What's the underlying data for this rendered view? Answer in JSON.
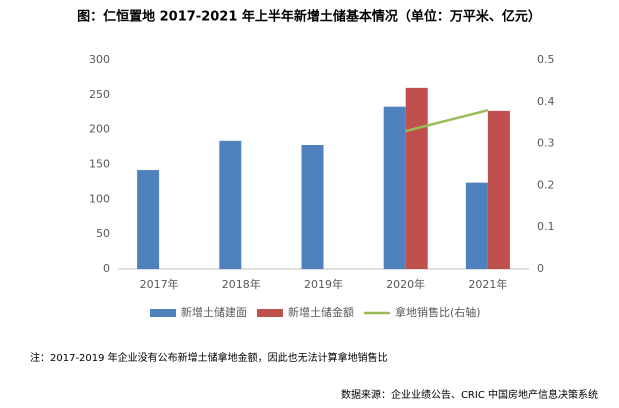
{
  "chart_data": {
    "type": "bar_line",
    "title": "图：仁恒置地 2017-2021 年上半年新增土储基本情况（单位：万平米、亿元）",
    "categories": [
      "2017年",
      "2018年",
      "2019年",
      "2020年",
      "2021年"
    ],
    "series": [
      {
        "name": "新增土储建面",
        "color": "#4f81bd",
        "type": "bar",
        "values": [
          142,
          184,
          178,
          233,
          124
        ]
      },
      {
        "name": "新增土储金额",
        "color": "#c0504d",
        "type": "bar",
        "values": [
          null,
          null,
          null,
          260,
          227
        ]
      },
      {
        "name": "拿地销售比(右轴)",
        "color": "#9bbb59",
        "type": "line",
        "axis": "y2",
        "values": [
          null,
          null,
          null,
          0.33,
          0.38
        ]
      }
    ],
    "ylim": [
      0,
      300
    ],
    "yticks": [
      0,
      50,
      100,
      150,
      200,
      250,
      300
    ],
    "y2lim": [
      0,
      0.5
    ],
    "y2ticks": [
      0,
      0.1,
      0.2,
      0.3,
      0.4,
      0.5
    ],
    "legend": "bottom",
    "note": "注：2017-2019 年企业没有公布新增土储拿地金额，因此也无法计算拿地销售比",
    "source": "数据来源：企业业绩公告、CRIC 中国房地产信息决策系统"
  }
}
